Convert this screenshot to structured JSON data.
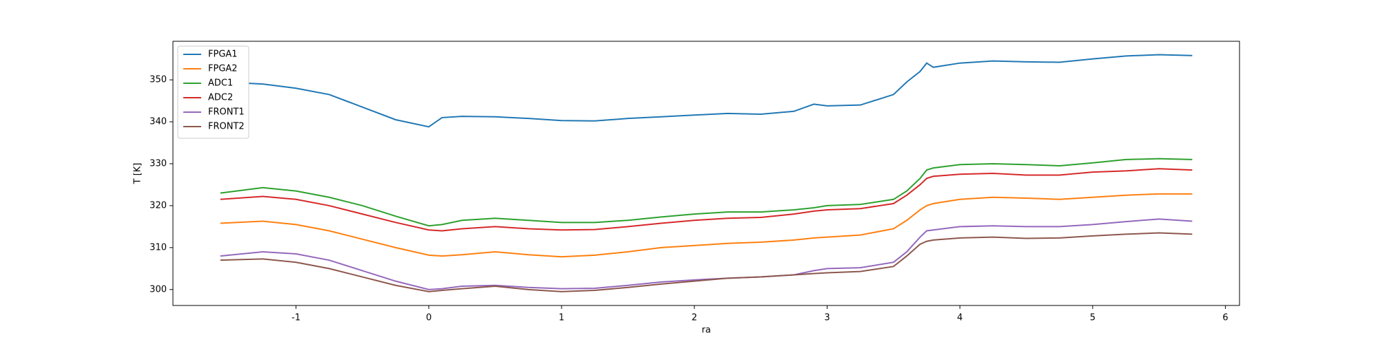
{
  "chart_data": {
    "type": "line",
    "x_label": "ra",
    "y_label": "T [K]",
    "x": [
      -1.57,
      -1.25,
      -1.0,
      -0.75,
      -0.5,
      -0.25,
      0,
      0.1,
      0.25,
      0.5,
      0.75,
      1,
      1.25,
      1.5,
      1.75,
      2,
      2.25,
      2.5,
      2.75,
      2.9,
      3,
      3.25,
      3.5,
      3.6,
      3.7,
      3.75,
      3.8,
      4,
      4.25,
      4.5,
      4.75,
      5,
      5.25,
      5.5,
      5.75
    ],
    "series": [
      {
        "name": "FPGA1",
        "color": "#1f77b4",
        "values": [
          349.5,
          349,
          348,
          346.5,
          343.5,
          340.5,
          338.8,
          341,
          341.3,
          341.2,
          340.8,
          340.3,
          340.2,
          340.8,
          341.2,
          341.6,
          342,
          341.8,
          342.5,
          344.2,
          343.8,
          344,
          346.5,
          349.5,
          352,
          354,
          353,
          354,
          354.5,
          354.3,
          354.2,
          355,
          355.7,
          356,
          355.8
        ]
      },
      {
        "name": "FPGA2",
        "color": "#ff7f0e",
        "values": [
          315.8,
          316.3,
          315.5,
          314,
          312,
          310,
          308.2,
          308,
          308.3,
          309,
          308.3,
          307.8,
          308.2,
          309,
          310,
          310.5,
          311,
          311.3,
          311.8,
          312.3,
          312.5,
          313,
          314.5,
          316.5,
          319,
          320,
          320.5,
          321.5,
          322,
          321.8,
          321.5,
          322,
          322.5,
          322.8,
          322.8
        ]
      },
      {
        "name": "ADC1",
        "color": "#2ca02c",
        "values": [
          323,
          324.3,
          323.5,
          322,
          320,
          317.5,
          315.2,
          315.5,
          316.5,
          317,
          316.5,
          316,
          316,
          316.5,
          317.3,
          318,
          318.5,
          318.5,
          319,
          319.5,
          320,
          320.3,
          321.5,
          323.5,
          326.5,
          328.5,
          329,
          329.8,
          330,
          329.8,
          329.5,
          330.2,
          331,
          331.2,
          331
        ]
      },
      {
        "name": "ADC2",
        "color": "#d62728",
        "values": [
          321.5,
          322.2,
          321.5,
          320,
          318,
          316,
          314.2,
          314,
          314.5,
          315,
          314.5,
          314.2,
          314.3,
          315,
          315.8,
          316.5,
          317,
          317.2,
          318,
          318.7,
          319,
          319.3,
          320.5,
          322.5,
          325,
          326.5,
          327,
          327.5,
          327.7,
          327.3,
          327.3,
          328,
          328.3,
          328.8,
          328.5
        ]
      },
      {
        "name": "FRONT1",
        "color": "#9467bd",
        "values": [
          308,
          309,
          308.5,
          307,
          304.5,
          302,
          300,
          300.2,
          300.8,
          301,
          300.5,
          300.2,
          300.3,
          301,
          301.8,
          302.3,
          302.7,
          303,
          303.5,
          304.5,
          305,
          305.2,
          306.5,
          309,
          312.5,
          314,
          314.2,
          315,
          315.2,
          315,
          315,
          315.5,
          316.2,
          316.8,
          316.3
        ]
      },
      {
        "name": "FRONT2",
        "color": "#8c564b",
        "values": [
          307,
          307.3,
          306.5,
          305,
          303,
          301,
          299.5,
          299.8,
          300.2,
          300.8,
          300,
          299.5,
          299.8,
          300.5,
          301.3,
          302,
          302.7,
          303,
          303.5,
          303.8,
          304,
          304.3,
          305.5,
          308,
          310.8,
          311.5,
          311.8,
          312.3,
          312.5,
          312.2,
          312.3,
          312.8,
          313.2,
          313.5,
          313.2
        ]
      }
    ],
    "xlim": [
      -1.927,
      6.106
    ],
    "xticks": [
      -1,
      0,
      1,
      2,
      3,
      4,
      5,
      6
    ],
    "ylim": [
      296.2,
      359.2
    ],
    "yticks": [
      300,
      310,
      320,
      330,
      340,
      350
    ],
    "legend": "upper left"
  }
}
